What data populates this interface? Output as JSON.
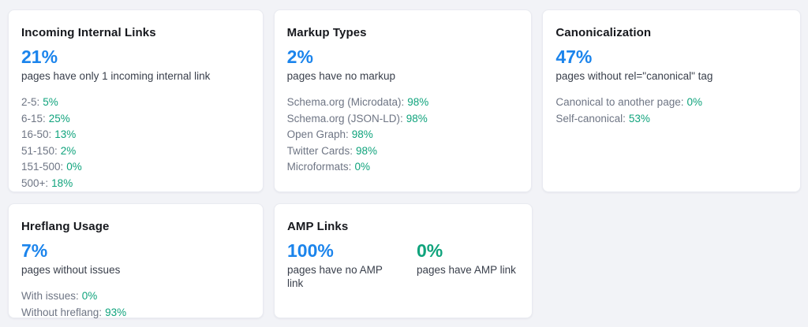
{
  "colors": {
    "background": "#f2f3f7",
    "card_background": "#ffffff",
    "card_border": "#e9ebf1",
    "title_text": "#16181d",
    "caption_text": "#3a404c",
    "label_text": "#6e7584",
    "accent_blue": "#1b84ec",
    "accent_green": "#0fa37c"
  },
  "cards": [
    {
      "id": "incoming-internal-links",
      "title": "Incoming Internal Links",
      "stats": [
        {
          "value": "21%",
          "color": "blue",
          "caption": "pages have only 1 incoming internal link"
        }
      ],
      "breakdown": [
        {
          "label": "2-5:",
          "value": "5%"
        },
        {
          "label": "6-15:",
          "value": "25%"
        },
        {
          "label": "16-50:",
          "value": "13%"
        },
        {
          "label": "51-150:",
          "value": "2%"
        },
        {
          "label": "151-500:",
          "value": "0%"
        },
        {
          "label": "500+:",
          "value": "18%"
        }
      ]
    },
    {
      "id": "markup-types",
      "title": "Markup Types",
      "stats": [
        {
          "value": "2%",
          "color": "blue",
          "caption": "pages have no markup"
        }
      ],
      "breakdown": [
        {
          "label": "Schema.org (Microdata):",
          "value": "98%"
        },
        {
          "label": "Schema.org (JSON-LD):",
          "value": "98%"
        },
        {
          "label": "Open Graph:",
          "value": "98%"
        },
        {
          "label": "Twitter Cards:",
          "value": "98%"
        },
        {
          "label": "Microformats:",
          "value": "0%"
        }
      ]
    },
    {
      "id": "canonicalization",
      "title": "Canonicalization",
      "stats": [
        {
          "value": "47%",
          "color": "blue",
          "caption": "pages without rel=\"canonical\" tag"
        }
      ],
      "breakdown": [
        {
          "label": "Canonical to another page:",
          "value": "0%"
        },
        {
          "label": "Self-canonical:",
          "value": "53%"
        }
      ]
    },
    {
      "id": "hreflang-usage",
      "title": "Hreflang Usage",
      "stats": [
        {
          "value": "7%",
          "color": "blue",
          "caption": "pages without issues"
        }
      ],
      "breakdown": [
        {
          "label": "With issues:",
          "value": "0%"
        },
        {
          "label": "Without hreflang:",
          "value": "93%"
        }
      ]
    },
    {
      "id": "amp-links",
      "title": "AMP Links",
      "stats": [
        {
          "value": "100%",
          "color": "blue",
          "caption": "pages have no AMP link"
        },
        {
          "value": "0%",
          "color": "green",
          "caption": "pages have AMP link"
        }
      ],
      "breakdown": []
    }
  ]
}
